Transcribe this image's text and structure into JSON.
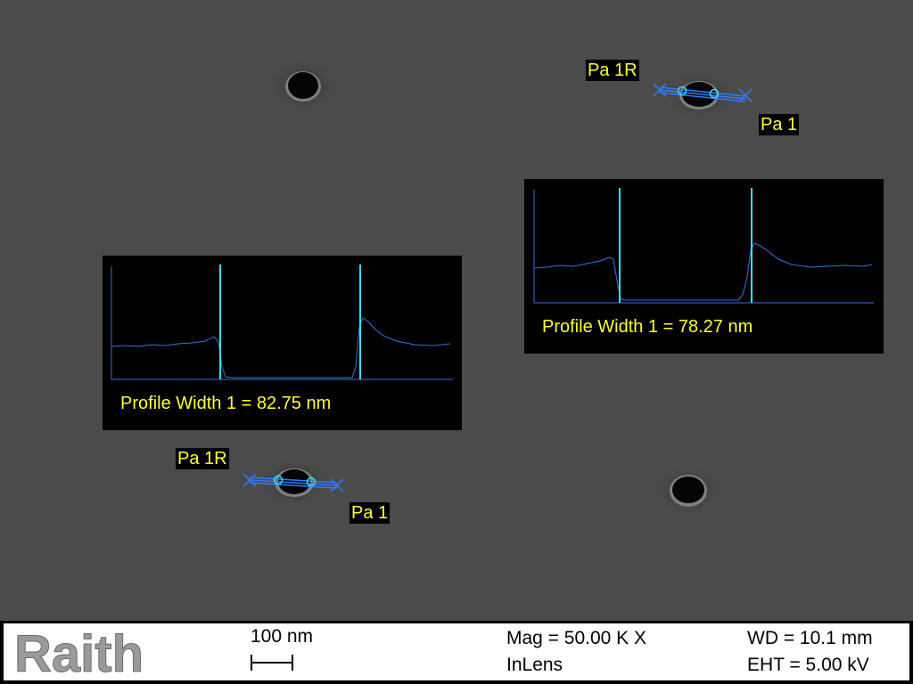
{
  "measurements": [
    {
      "label_left": "Pa 1R",
      "label_right": "Pa 1",
      "profile_text": "Profile Width 1 = 78.27 nm"
    },
    {
      "label_left": "Pa 1R",
      "label_right": "Pa 1",
      "profile_text": "Profile Width 1 = 82.75 nm"
    }
  ],
  "info_bar": {
    "logo": "Raith",
    "scale_label": "100 nm",
    "mag": "Mag =  50.00 K X",
    "detector": "InLens",
    "wd": "WD = 10.1 mm",
    "eht": "EHT =  5.00 kV"
  },
  "colors": {
    "background": "#4a4a4a",
    "label_text": "#ffff33",
    "profile_line": "#3b6fe0",
    "cursor_line": "#33e0ee",
    "marker": "#2f7cff"
  }
}
